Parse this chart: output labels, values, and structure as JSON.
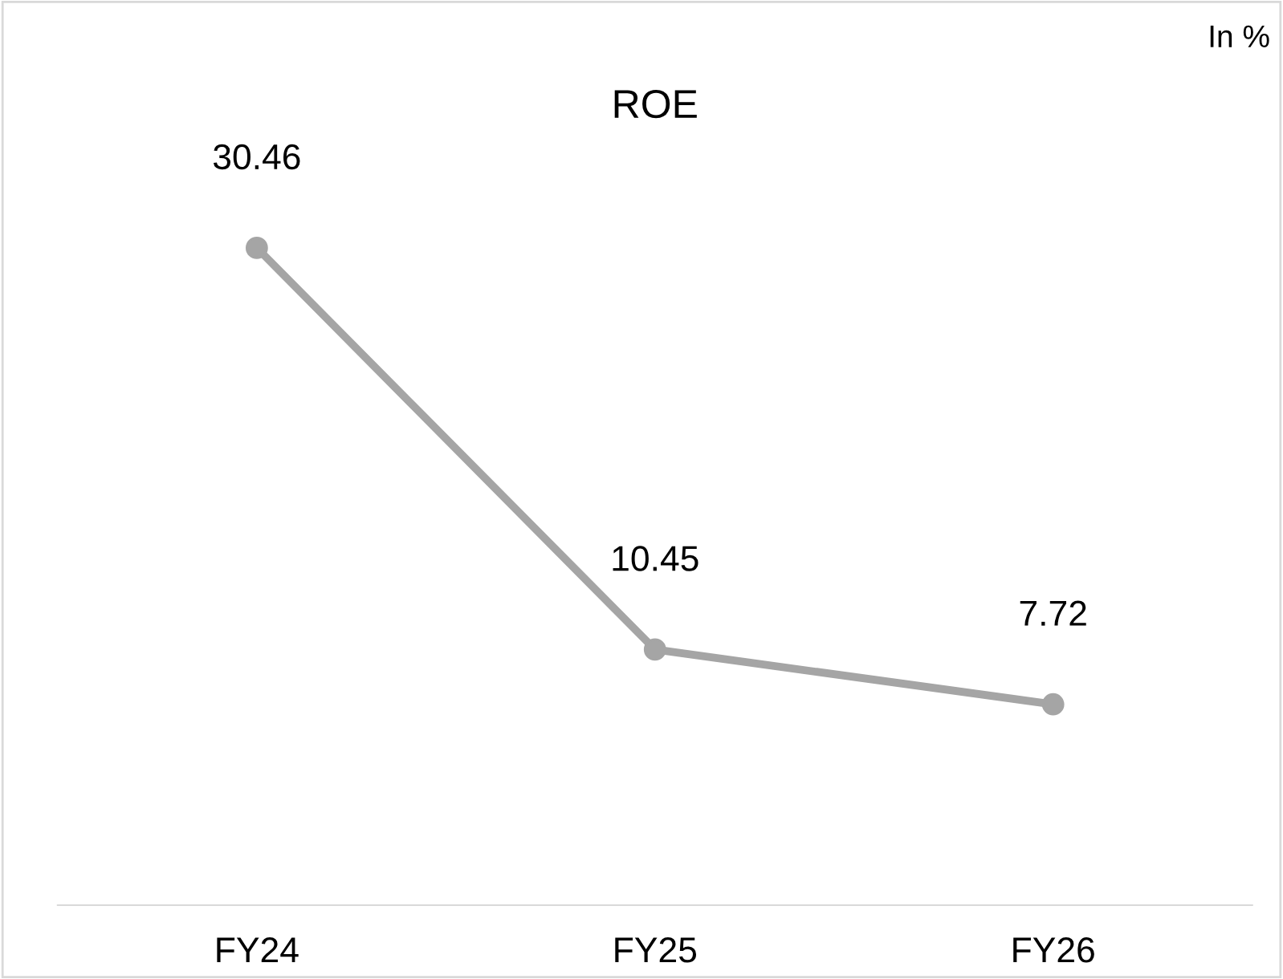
{
  "chart_data": {
    "type": "line",
    "title": "ROE",
    "annotations": [
      "In %"
    ],
    "categories": [
      "FY24",
      "FY25",
      "FY26"
    ],
    "series": [
      {
        "color": "#a5a5a5",
        "values": [
          30.46,
          10.45,
          7.72
        ]
      }
    ],
    "data_labels": true,
    "marker": "circle",
    "line_style": "solid",
    "grid": false,
    "legend": false
  }
}
